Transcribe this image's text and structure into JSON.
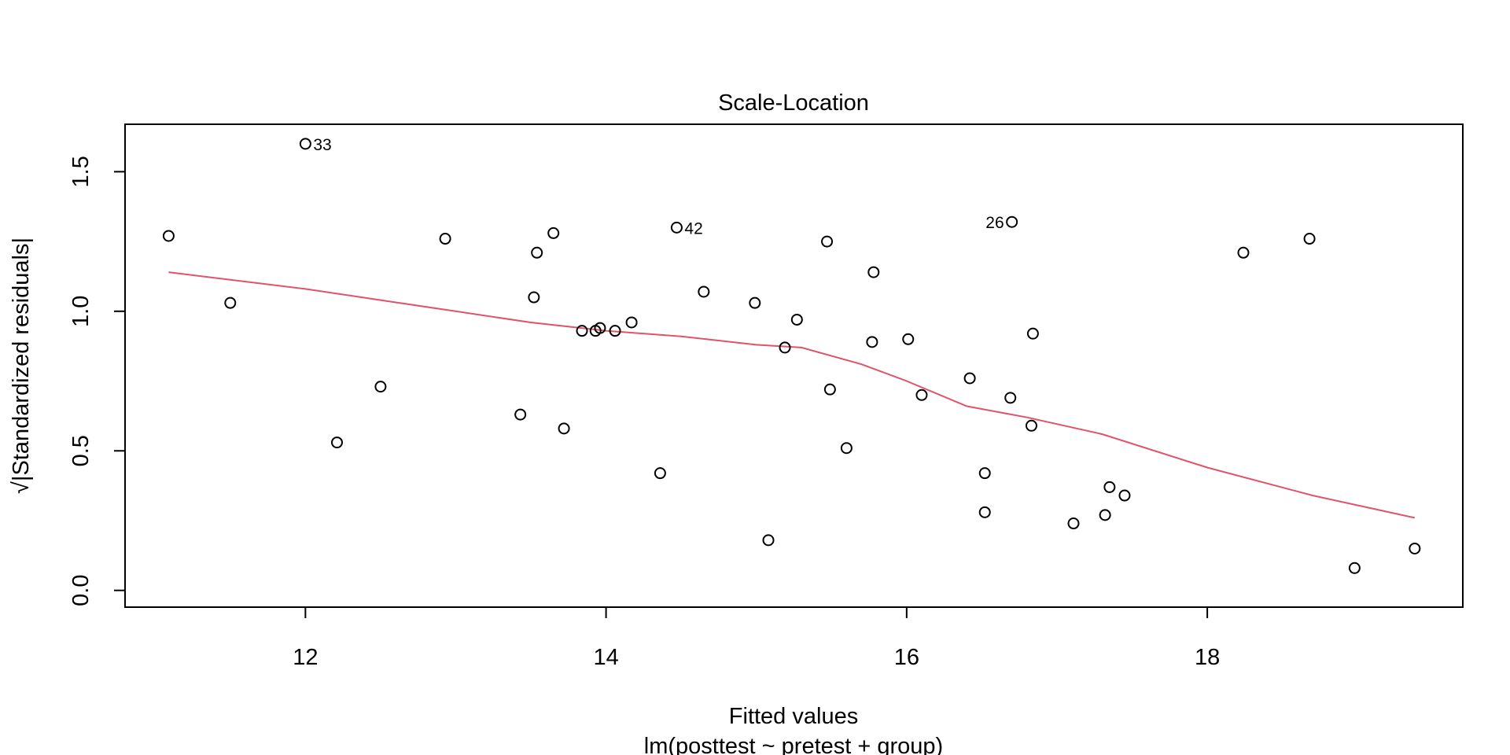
{
  "chart_data": {
    "type": "scatter",
    "title": "Scale-Location",
    "xlabel": "Fitted values",
    "xlabel_sub": "lm(posttest ~ pretest + group)",
    "ylabel": "√|Standardized residuals|",
    "xlim": [
      10.8,
      19.7
    ],
    "ylim": [
      -0.06,
      1.67
    ],
    "x_ticks": [
      12,
      14,
      16,
      18
    ],
    "x_tick_labels": [
      "12",
      "14",
      "16",
      "18"
    ],
    "y_ticks": [
      0.0,
      0.5,
      1.0,
      1.5
    ],
    "y_tick_labels": [
      "0.0",
      "0.5",
      "1.0",
      "1.5"
    ],
    "grid": false,
    "point_color": "#000000",
    "smooth_color": "#DF536B",
    "points": [
      {
        "x": 11.09,
        "y": 1.27
      },
      {
        "x": 11.5,
        "y": 1.03
      },
      {
        "x": 12.0,
        "y": 1.6,
        "label": "33"
      },
      {
        "x": 12.21,
        "y": 0.53
      },
      {
        "x": 12.5,
        "y": 0.73
      },
      {
        "x": 12.93,
        "y": 1.26
      },
      {
        "x": 13.43,
        "y": 0.63
      },
      {
        "x": 13.52,
        "y": 1.05
      },
      {
        "x": 13.54,
        "y": 1.21
      },
      {
        "x": 13.65,
        "y": 1.28
      },
      {
        "x": 13.72,
        "y": 0.58
      },
      {
        "x": 13.84,
        "y": 0.93
      },
      {
        "x": 13.93,
        "y": 0.93
      },
      {
        "x": 13.96,
        "y": 0.94
      },
      {
        "x": 14.06,
        "y": 0.93
      },
      {
        "x": 14.17,
        "y": 0.96
      },
      {
        "x": 14.36,
        "y": 0.42
      },
      {
        "x": 14.47,
        "y": 1.3,
        "label": "42"
      },
      {
        "x": 14.65,
        "y": 1.07
      },
      {
        "x": 14.99,
        "y": 1.03
      },
      {
        "x": 15.08,
        "y": 0.18
      },
      {
        "x": 15.19,
        "y": 0.87
      },
      {
        "x": 15.27,
        "y": 0.97
      },
      {
        "x": 15.47,
        "y": 1.25
      },
      {
        "x": 15.49,
        "y": 0.72
      },
      {
        "x": 15.6,
        "y": 0.51
      },
      {
        "x": 15.77,
        "y": 0.89
      },
      {
        "x": 15.78,
        "y": 1.14
      },
      {
        "x": 16.01,
        "y": 0.9
      },
      {
        "x": 16.1,
        "y": 0.7
      },
      {
        "x": 16.42,
        "y": 0.76
      },
      {
        "x": 16.52,
        "y": 0.42
      },
      {
        "x": 16.52,
        "y": 0.28
      },
      {
        "x": 16.69,
        "y": 0.69
      },
      {
        "x": 16.7,
        "y": 1.32,
        "label": "26"
      },
      {
        "x": 16.83,
        "y": 0.59
      },
      {
        "x": 16.84,
        "y": 0.92
      },
      {
        "x": 17.11,
        "y": 0.24
      },
      {
        "x": 17.32,
        "y": 0.27
      },
      {
        "x": 17.35,
        "y": 0.37
      },
      {
        "x": 17.45,
        "y": 0.34
      },
      {
        "x": 18.24,
        "y": 1.21
      },
      {
        "x": 18.68,
        "y": 1.26
      },
      {
        "x": 18.98,
        "y": 0.08
      },
      {
        "x": 19.38,
        "y": 0.15
      }
    ],
    "smooth_line": [
      {
        "x": 11.09,
        "y": 1.14
      },
      {
        "x": 12.0,
        "y": 1.08
      },
      {
        "x": 13.0,
        "y": 1.0
      },
      {
        "x": 13.5,
        "y": 0.96
      },
      {
        "x": 14.0,
        "y": 0.93
      },
      {
        "x": 14.5,
        "y": 0.91
      },
      {
        "x": 15.0,
        "y": 0.88
      },
      {
        "x": 15.3,
        "y": 0.87
      },
      {
        "x": 15.7,
        "y": 0.81
      },
      {
        "x": 16.0,
        "y": 0.75
      },
      {
        "x": 16.4,
        "y": 0.66
      },
      {
        "x": 16.8,
        "y": 0.62
      },
      {
        "x": 17.3,
        "y": 0.56
      },
      {
        "x": 18.0,
        "y": 0.44
      },
      {
        "x": 18.7,
        "y": 0.34
      },
      {
        "x": 19.38,
        "y": 0.26
      }
    ]
  }
}
